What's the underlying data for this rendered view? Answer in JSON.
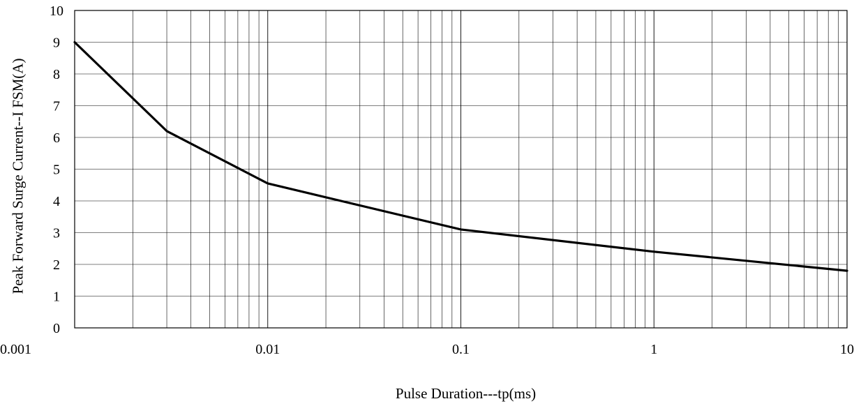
{
  "chart_data": {
    "type": "line",
    "title": "",
    "xlabel": "Pulse Duration---tp(ms)",
    "ylabel": "Peak Forward Surge Current--I FSM(A)",
    "xscale": "log",
    "xlim": [
      0.001,
      10
    ],
    "ylim": [
      0,
      10
    ],
    "grid": true,
    "x_ticks": [
      0.001,
      0.01,
      0.1,
      1,
      10
    ],
    "x_tick_labels": [
      "0.001",
      "0.01",
      "0.1",
      "1",
      "10"
    ],
    "y_ticks": [
      0,
      1,
      2,
      3,
      4,
      5,
      6,
      7,
      8,
      9,
      10
    ],
    "y_tick_labels": [
      "0",
      "1",
      "2",
      "3",
      "4",
      "5",
      "6",
      "7",
      "8",
      "9",
      "10"
    ],
    "series": [
      {
        "x": [
          0.001,
          0.003,
          0.01,
          0.1,
          1,
          10
        ],
        "y": [
          9.0,
          6.2,
          4.55,
          3.1,
          2.4,
          1.8
        ],
        "color": "#000000"
      }
    ]
  }
}
